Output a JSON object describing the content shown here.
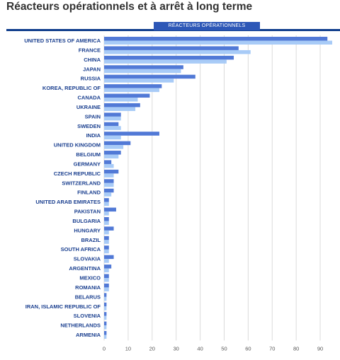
{
  "title": "Réacteurs opérationnels et à arrêt à long terme",
  "tab_label": "RÉACTEURS OPÉRATIONNELS",
  "colors": {
    "series1": "#5179d6",
    "series2": "#a8cbf7",
    "grid": "#dcdcdc",
    "label": "#1a3f8f"
  },
  "chart_data": {
    "type": "bar",
    "orientation": "horizontal",
    "categories": [
      "UNITED STATES OF AMERICA",
      "FRANCE",
      "CHINA",
      "JAPAN",
      "RUSSIA",
      "KOREA, REPUBLIC OF",
      "CANADA",
      "UKRAINE",
      "SPAIN",
      "SWEDEN",
      "INDIA",
      "UNITED KINGDOM",
      "BELGIUM",
      "GERMANY",
      "CZECH REPUBLIC",
      "SWITZERLAND",
      "FINLAND",
      "UNITED ARAB EMIRATES",
      "PAKISTAN",
      "BULGARIA",
      "HUNGARY",
      "BRAZIL",
      "SOUTH AFRICA",
      "SLOVAKIA",
      "ARGENTINA",
      "MEXICO",
      "ROMANIA",
      "BELARUS",
      "IRAN, ISLAMIC REPUBLIC OF",
      "SLOVENIA",
      "NETHERLANDS",
      "ARMENIA"
    ],
    "series": [
      {
        "values": [
          93,
          56,
          54,
          33,
          38,
          24,
          19,
          15,
          7,
          6,
          23,
          11,
          7,
          3,
          6,
          4,
          4,
          2,
          5,
          2,
          4,
          2,
          2,
          4,
          3,
          2,
          2,
          1,
          1,
          1,
          1,
          1
        ]
      },
      {
        "values": [
          95,
          61,
          51,
          32,
          29,
          23,
          14,
          13,
          7,
          7,
          7,
          8,
          6,
          4,
          4,
          4,
          3,
          2,
          2,
          2,
          2,
          2,
          2,
          2,
          2,
          2,
          2,
          1,
          1,
          1,
          1,
          1
        ]
      }
    ],
    "xlim": [
      0,
      95
    ],
    "xticks": [
      0,
      10,
      20,
      30,
      40,
      50,
      60,
      70,
      80,
      90
    ],
    "grid": true
  }
}
